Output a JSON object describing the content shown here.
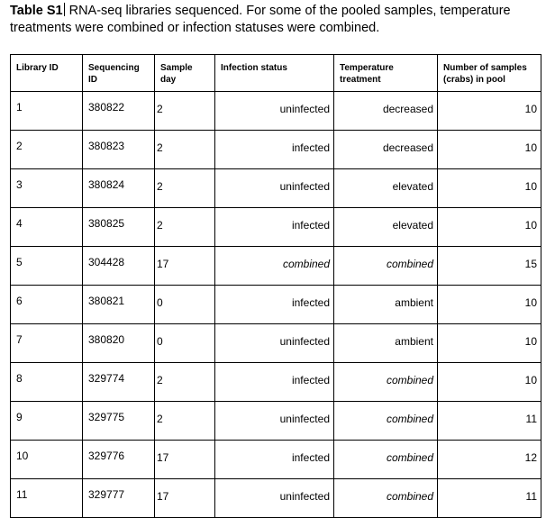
{
  "caption": {
    "label": "Table S1",
    "text": "RNA-seq libraries sequenced. For some of the pooled samples, temperature treatments were combined or infection statuses were combined."
  },
  "table": {
    "headers": [
      "Library ID",
      "Sequencing ID",
      "Sample day",
      "Infection status",
      "Temperature treatment",
      "Number of samples (crabs) in pool"
    ],
    "rows": [
      {
        "library_id": "1",
        "sequencing_id": "380822",
        "sample_day": "2",
        "infection_status": "uninfected",
        "temperature": "decreased",
        "n_samples": "10"
      },
      {
        "library_id": "2",
        "sequencing_id": "380823",
        "sample_day": "2",
        "infection_status": "infected",
        "temperature": "decreased",
        "n_samples": "10"
      },
      {
        "library_id": "3",
        "sequencing_id": "380824",
        "sample_day": "2",
        "infection_status": "uninfected",
        "temperature": "elevated",
        "n_samples": "10"
      },
      {
        "library_id": "4",
        "sequencing_id": "380825",
        "sample_day": "2",
        "infection_status": "infected",
        "temperature": "elevated",
        "n_samples": "10"
      },
      {
        "library_id": "5",
        "sequencing_id": "304428",
        "sample_day": "17",
        "infection_status": "combined",
        "temperature": "combined",
        "n_samples": "15"
      },
      {
        "library_id": "6",
        "sequencing_id": "380821",
        "sample_day": "0",
        "infection_status": "infected",
        "temperature": "ambient",
        "n_samples": "10"
      },
      {
        "library_id": "7",
        "sequencing_id": "380820",
        "sample_day": "0",
        "infection_status": "uninfected",
        "temperature": "ambient",
        "n_samples": "10"
      },
      {
        "library_id": "8",
        "sequencing_id": "329774",
        "sample_day": "2",
        "infection_status": "infected",
        "temperature": "combined",
        "n_samples": "10"
      },
      {
        "library_id": "9",
        "sequencing_id": "329775",
        "sample_day": "2",
        "infection_status": "uninfected",
        "temperature": "combined",
        "n_samples": "11"
      },
      {
        "library_id": "10",
        "sequencing_id": "329776",
        "sample_day": "17",
        "infection_status": "infected",
        "temperature": "combined",
        "n_samples": "12"
      },
      {
        "library_id": "11",
        "sequencing_id": "329777",
        "sample_day": "17",
        "infection_status": "uninfected",
        "temperature": "combined",
        "n_samples": "11"
      }
    ]
  }
}
